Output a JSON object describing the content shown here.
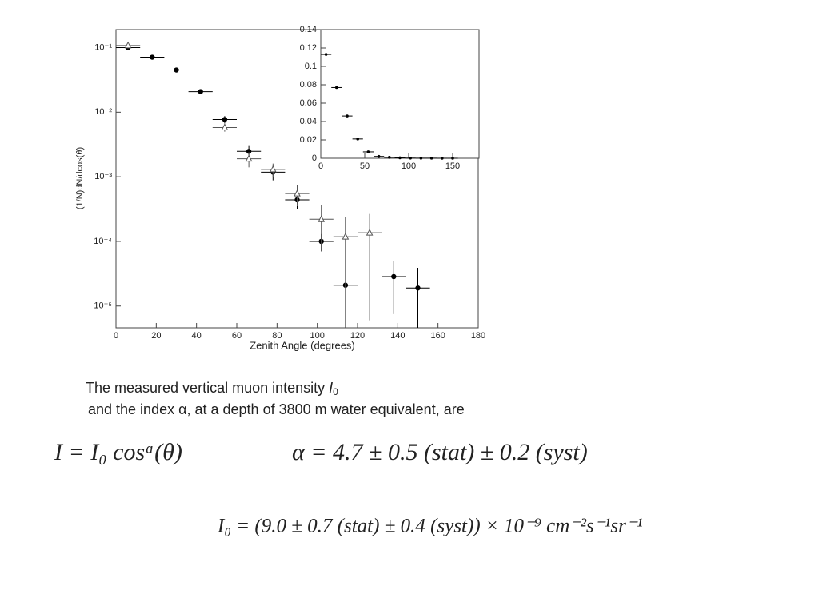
{
  "chart_data": [
    {
      "type": "scatter",
      "y_label": "(1/N)dN/dcos(θ)",
      "x_label": "Zenith Angle (degrees)",
      "log_y": true,
      "x": [
        6,
        18,
        30,
        42,
        54,
        66,
        78,
        90,
        102,
        114,
        126,
        138,
        150
      ],
      "xerr": 6,
      "xlim": [
        0,
        180
      ],
      "xticks": [
        0,
        20,
        40,
        60,
        80,
        100,
        120,
        140,
        160,
        180
      ],
      "ylim": [
        4.6e-06,
        0.19
      ],
      "yticks": [
        {
          "value": 0.1,
          "label": "10⁻¹"
        },
        {
          "value": 0.01,
          "label": "10⁻²"
        },
        {
          "value": 0.001,
          "label": "10⁻³"
        },
        {
          "value": 0.0001,
          "label": "10⁻⁴"
        },
        {
          "value": 1e-05,
          "label": "10⁻⁵"
        }
      ],
      "series": [
        {
          "marker": "filled-circle",
          "color": "#000000",
          "values": [
            0.1,
            0.071,
            0.045,
            0.0208,
            0.0077,
            0.00248,
            0.00118,
            0.00044,
            0.0001,
            2.1e-05,
            null,
            2.85e-05,
            1.9e-05
          ],
          "yerr": [
            null,
            null,
            null,
            null,
            0.001,
            0.0006,
            0.0003,
            0.00012,
            3e-05,
            0.00022,
            null,
            2.1e-05,
            2e-05
          ]
        },
        {
          "marker": "open-triangle",
          "color": "#555555",
          "values": [
            0.108,
            null,
            null,
            null,
            0.0058,
            0.0019,
            0.0013,
            0.00055,
            0.00022,
            0.000118,
            0.000136,
            null,
            null
          ],
          "yerr": [
            null,
            null,
            null,
            null,
            0.0008,
            0.0005,
            0.0003,
            0.0002,
            0.00015,
            0.00012,
            0.00013,
            null,
            null
          ]
        }
      ]
    },
    {
      "type": "scatter",
      "x": [
        6,
        18,
        30,
        42,
        54,
        66,
        78,
        90,
        102,
        114,
        126,
        138,
        150
      ],
      "xerr": 6,
      "xlim": [
        0,
        180
      ],
      "xticks": [
        0,
        50,
        100,
        150
      ],
      "ylim": [
        0,
        0.14
      ],
      "yticks": [
        0,
        0.02,
        0.04,
        0.06,
        0.08,
        0.1,
        0.12,
        0.14
      ],
      "series": [
        {
          "marker": "small-dot",
          "color": "#000000",
          "values": [
            0.113,
            0.077,
            0.046,
            0.021,
            0.007,
            0.002,
            0.001,
            0.0005,
            0.0002,
            0.0001,
            0.0001,
            3e-05,
            2e-05
          ]
        }
      ]
    }
  ],
  "caption": {
    "line1": "The measured vertical muon intensity",
    "symbol": "I",
    "symbol_sub": "0",
    "line2": "and the index α, at a depth of 3800 m water equivalent, are"
  },
  "equations": [
    "I = I₀ cosᵅ(θ)",
    "α = 4.7 ± 0.5 (stat) ± 0.2 (syst)",
    "I₀ = (9.0 ± 0.7 (stat) ± 0.4 (syst)) × 10⁻⁹ cm⁻²s⁻¹sr⁻¹"
  ]
}
